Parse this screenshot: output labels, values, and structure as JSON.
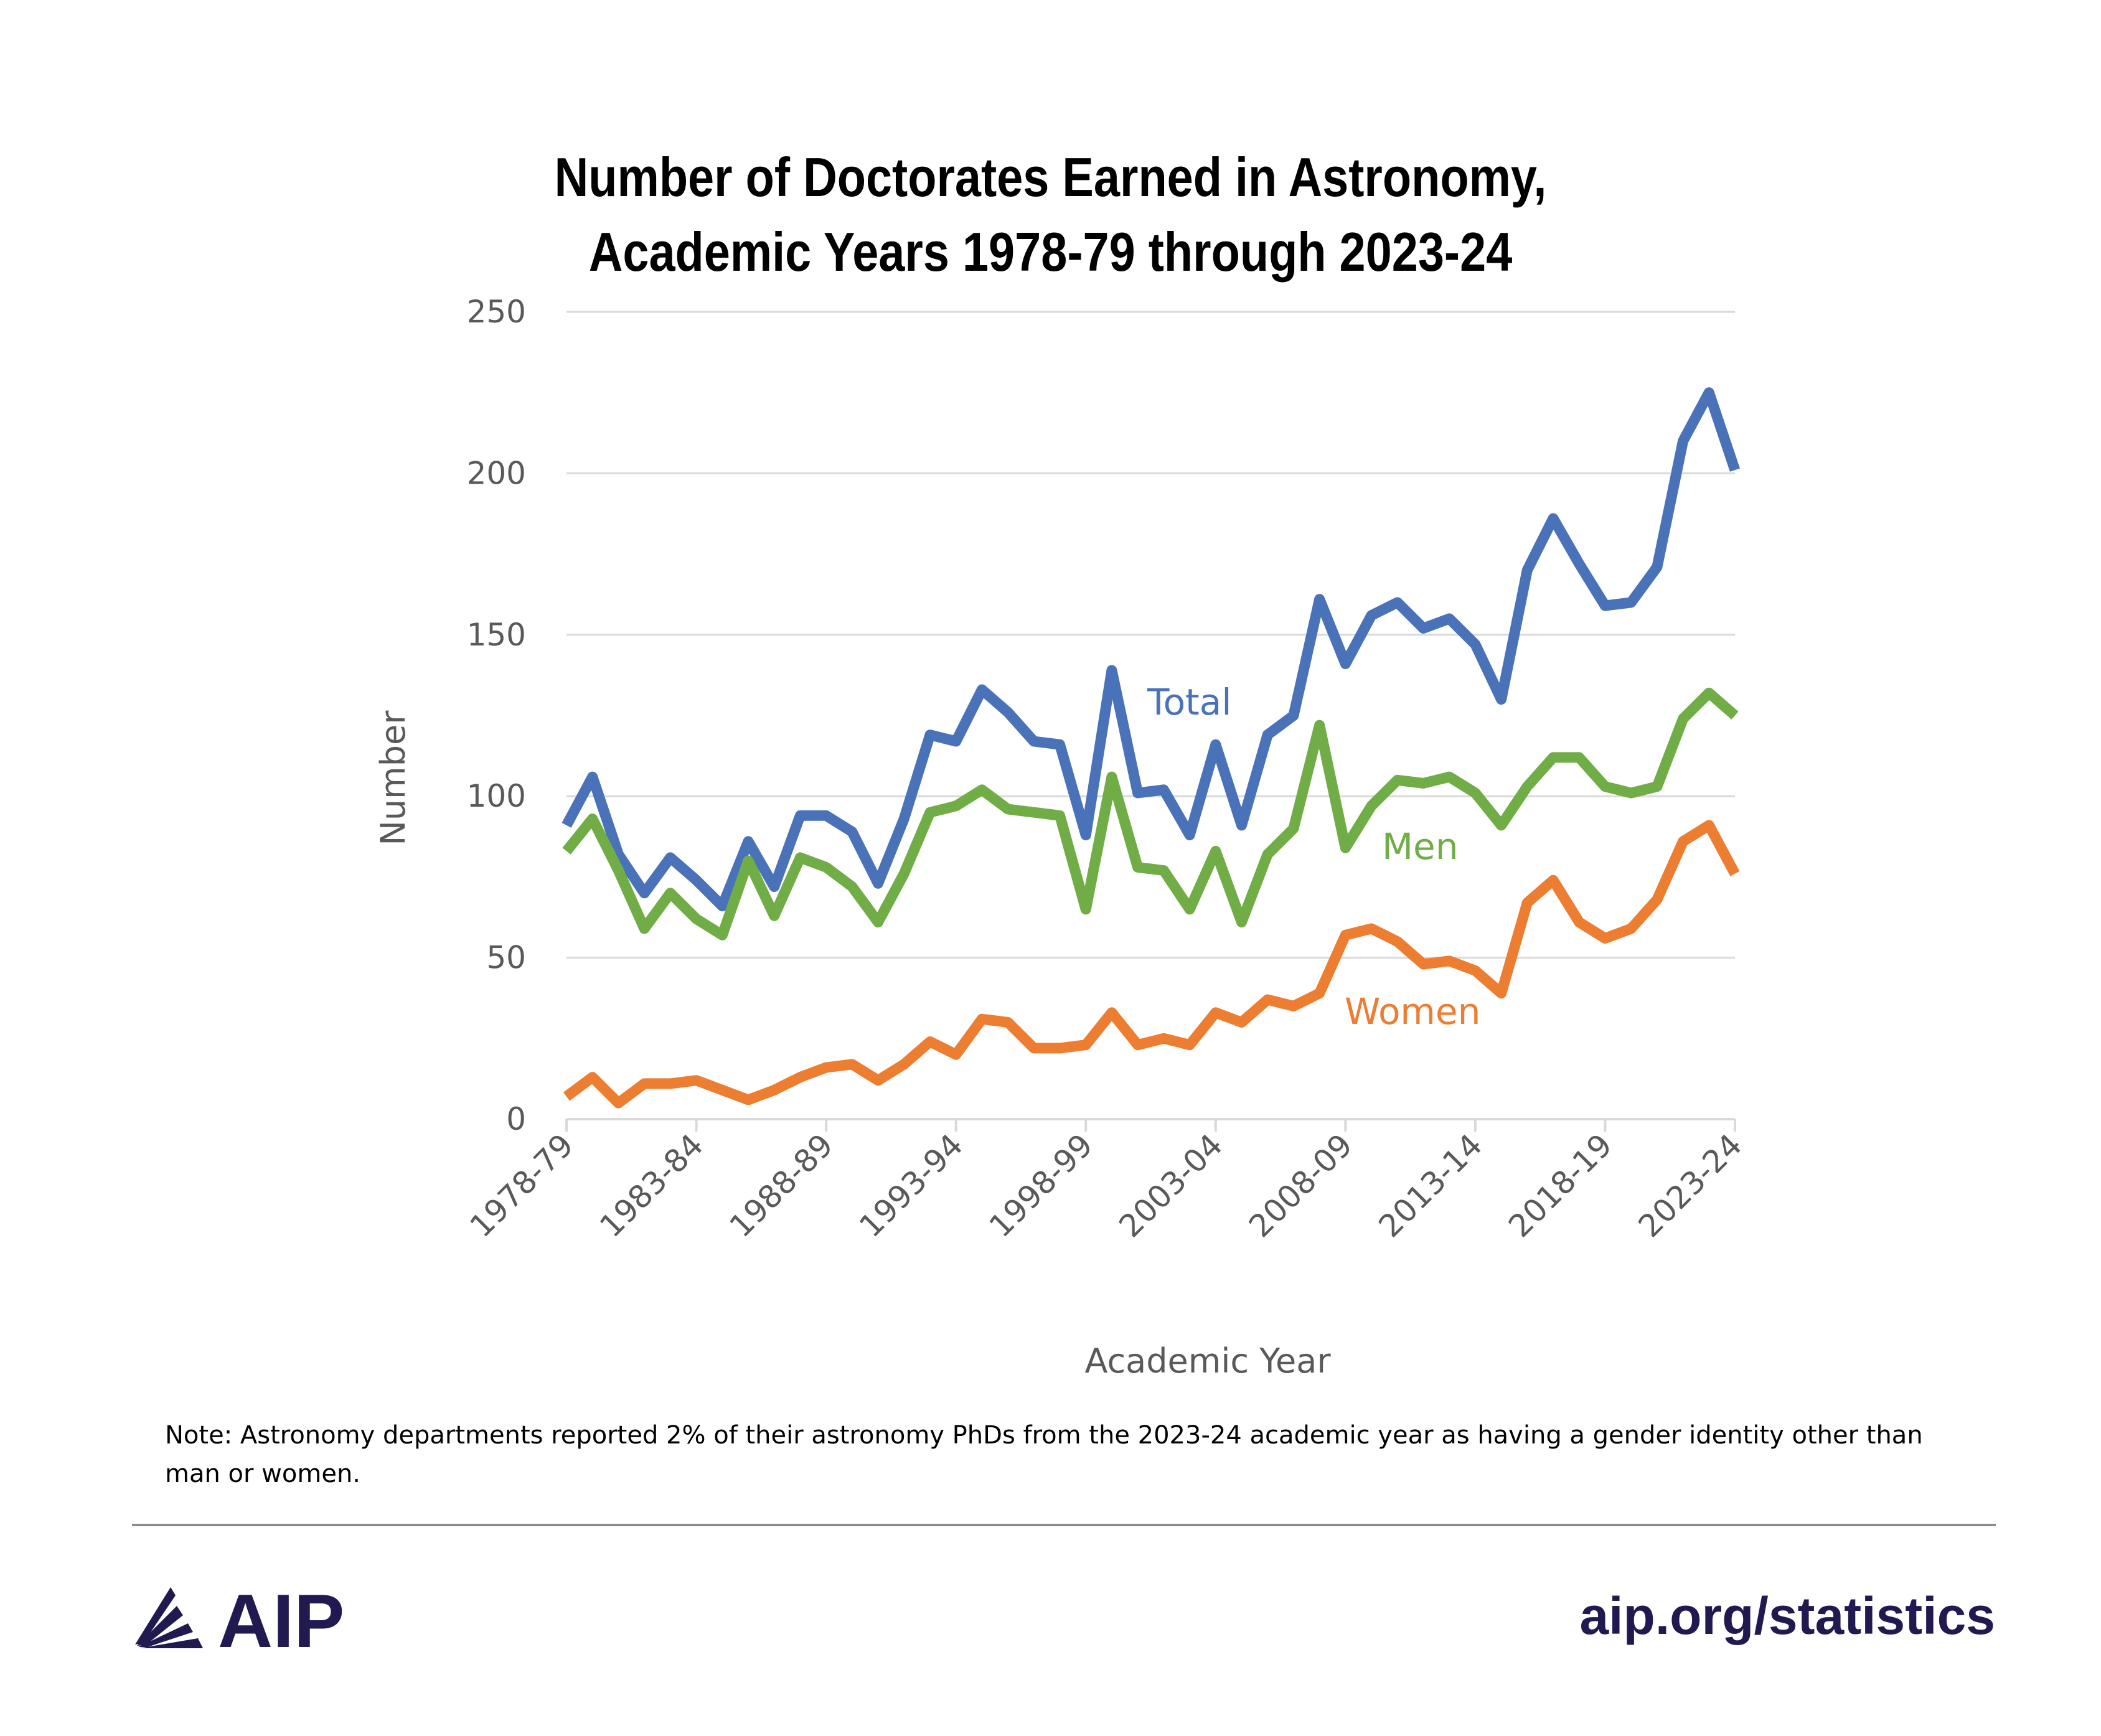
{
  "chart_data": {
    "type": "line",
    "title_lines": [
      "Number of Doctorates Earned in Astronomy,",
      "Academic Years 1978-79 through 2023-24"
    ],
    "xlabel": "Academic Year",
    "ylabel": "Number",
    "ylim": [
      0,
      250
    ],
    "yticks": [
      0,
      50,
      100,
      150,
      200,
      250
    ],
    "grid": true,
    "x": [
      "1978-79",
      "1979-80",
      "1980-81",
      "1981-82",
      "1982-83",
      "1983-84",
      "1984-85",
      "1985-86",
      "1986-87",
      "1987-88",
      "1988-89",
      "1989-90",
      "1990-91",
      "1991-92",
      "1992-93",
      "1993-94",
      "1994-95",
      "1995-96",
      "1996-97",
      "1997-98",
      "1998-99",
      "1999-00",
      "2000-01",
      "2001-02",
      "2002-03",
      "2003-04",
      "2004-05",
      "2005-06",
      "2006-07",
      "2007-08",
      "2008-09",
      "2009-10",
      "2010-11",
      "2011-12",
      "2012-13",
      "2013-14",
      "2014-15",
      "2015-16",
      "2016-17",
      "2017-18",
      "2018-19",
      "2019-20",
      "2020-21",
      "2021-22",
      "2022-23",
      "2023-24"
    ],
    "xtick_labels": [
      "1978-79",
      "1983-84",
      "1988-89",
      "1993-94",
      "1998-99",
      "2003-04",
      "2008-09",
      "2013-14",
      "2018-19",
      "2023-24"
    ],
    "series": [
      {
        "name": "Total",
        "color": "#4a72b8",
        "values": [
          91,
          106,
          82,
          70,
          81,
          74,
          66,
          86,
          72,
          94,
          94,
          89,
          73,
          93,
          119,
          117,
          133,
          126,
          117,
          116,
          88,
          139,
          101,
          102,
          88,
          116,
          91,
          119,
          125,
          161,
          141,
          156,
          160,
          152,
          155,
          147,
          130,
          170,
          186,
          172,
          159,
          160,
          171,
          210,
          225,
          201
        ]
      },
      {
        "name": "Men",
        "color": "#71ad47",
        "values": [
          83,
          93,
          77,
          59,
          70,
          62,
          57,
          80,
          63,
          81,
          78,
          72,
          61,
          76,
          95,
          97,
          102,
          96,
          95,
          94,
          65,
          106,
          78,
          77,
          65,
          83,
          61,
          82,
          90,
          122,
          84,
          97,
          105,
          104,
          106,
          101,
          91,
          103,
          112,
          112,
          103,
          101,
          103,
          124,
          132,
          125
        ]
      },
      {
        "name": "Women",
        "color": "#ed7d31",
        "values": [
          7,
          13,
          5,
          11,
          11,
          12,
          9,
          6,
          9,
          13,
          16,
          17,
          12,
          17,
          24,
          20,
          31,
          30,
          22,
          22,
          23,
          33,
          23,
          25,
          23,
          33,
          30,
          37,
          35,
          39,
          57,
          59,
          55,
          48,
          49,
          46,
          39,
          67,
          74,
          61,
          56,
          59,
          68,
          86,
          91,
          76
        ]
      }
    ],
    "annotations": [
      "Total",
      "Men",
      "Women"
    ]
  },
  "note": "Note: Astronomy departments reported 2% of their astronomy PhDs from the 2023-24 academic year as having a gender identity other than man or women.",
  "footer": {
    "logo_text": "AIP",
    "site": "aip.org/statistics",
    "brand_color": "#201a50"
  }
}
